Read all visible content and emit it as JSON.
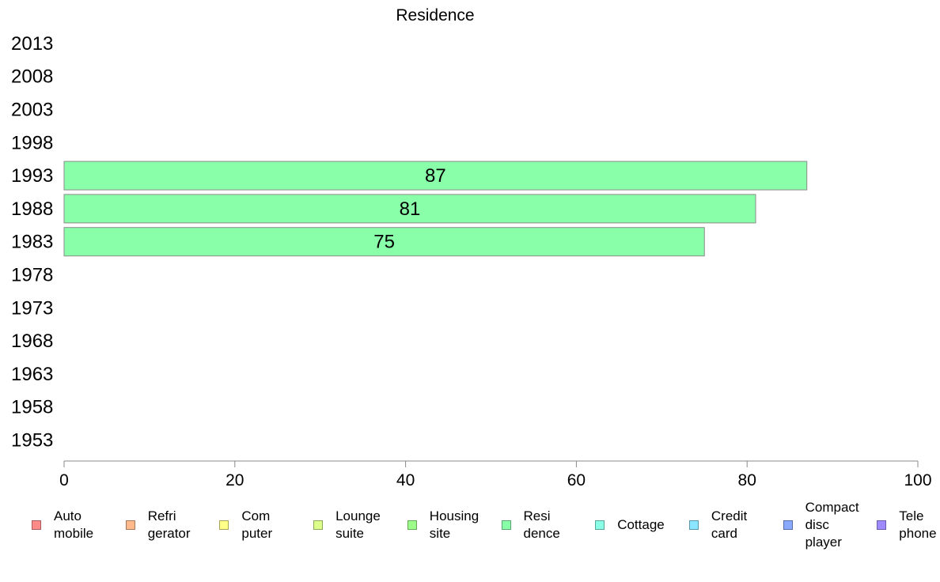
{
  "chart_data": {
    "type": "bar",
    "orientation": "horizontal",
    "title": "Residence",
    "xlabel": "",
    "ylabel": "",
    "xlim": [
      0,
      100
    ],
    "x_ticks": [
      "0",
      "20",
      "40",
      "60",
      "80",
      "100"
    ],
    "categories": [
      "2013",
      "2008",
      "2003",
      "1998",
      "1993",
      "1988",
      "1983",
      "1978",
      "1973",
      "1968",
      "1963",
      "1958",
      "1953"
    ],
    "series": [
      {
        "name": "Resi\ndence",
        "color": "#8affaa",
        "values": [
          null,
          null,
          null,
          null,
          87,
          81,
          75,
          null,
          null,
          null,
          null,
          null,
          null
        ],
        "labels": [
          "",
          "",
          "",
          "",
          "87",
          "81",
          "75",
          "",
          "",
          "",
          "",
          "",
          ""
        ]
      }
    ],
    "grid": false,
    "legend_position": "bottom",
    "legend": [
      {
        "label": "Auto\nmobile",
        "color": "#ff8a8a"
      },
      {
        "label": "Refri\ngerator",
        "color": "#ffb98a"
      },
      {
        "label": "Com\nputer",
        "color": "#ffff8a"
      },
      {
        "label": "Lounge\nsuite",
        "color": "#dcff8a"
      },
      {
        "label": "Housing\nsite",
        "color": "#9cff8a"
      },
      {
        "label": "Resi\ndence",
        "color": "#8affaa"
      },
      {
        "label": "Cottage",
        "color": "#8affe6"
      },
      {
        "label": "Credit\ncard",
        "color": "#8ae6ff"
      },
      {
        "label": "Compact\ndisc\nplayer",
        "color": "#8aaaff"
      },
      {
        "label": "Tele\nphone",
        "color": "#a08aff"
      }
    ]
  }
}
